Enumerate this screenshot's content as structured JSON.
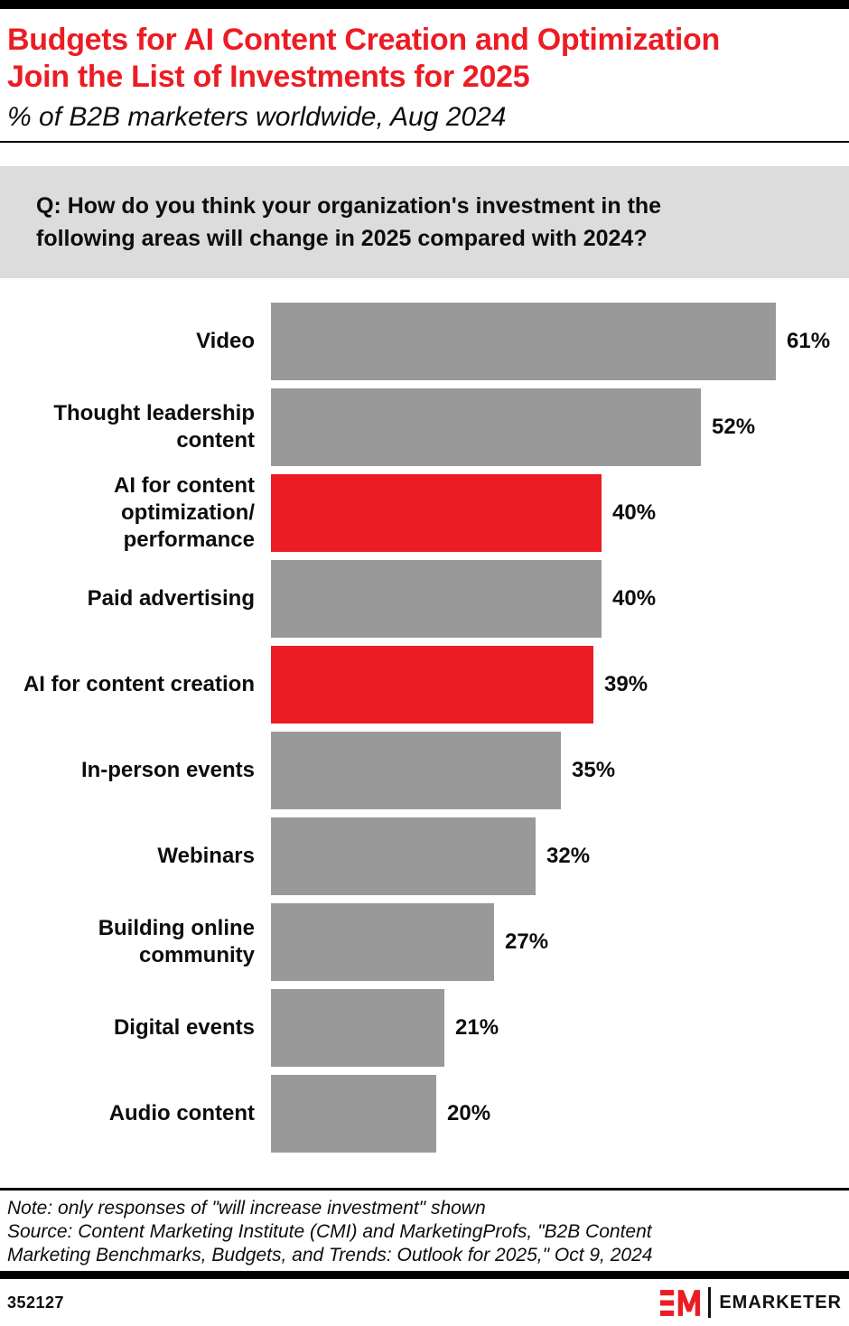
{
  "page": {
    "title": "Budgets for AI Content Creation and Optimization\nJoin the List of Investments for 2025",
    "subtitle": "% of B2B marketers worldwide, Aug 2024"
  },
  "question": {
    "text": "Q: How do you think your organization's investment in the\nfollowing areas will change in 2025 compared with 2024?"
  },
  "chart_data": {
    "type": "bar",
    "orientation": "horizontal",
    "unit": "%",
    "title": "Budgets for AI Content Creation and Optimization Join the List of Investments for 2025",
    "subtitle": "% of B2B marketers worldwide, Aug 2024",
    "xlim": [
      0,
      61
    ],
    "grid": false,
    "legend": "none",
    "categories": [
      "Video",
      "Thought leadership content",
      "AI for content optimization/performance",
      "Paid advertising",
      "AI for content creation",
      "In-person events",
      "Webinars",
      "Building online community",
      "Digital events",
      "Audio content"
    ],
    "values": [
      61,
      52,
      40,
      40,
      39,
      35,
      32,
      27,
      21,
      20
    ],
    "highlighted_categories": [
      "AI for content optimization/performance",
      "AI for content creation"
    ],
    "rows": [
      {
        "label": "Video",
        "value": 61,
        "value_label": "61%",
        "highlight": false
      },
      {
        "label": "Thought leadership\ncontent",
        "value": 52,
        "value_label": "52%",
        "highlight": false
      },
      {
        "label": "AI for content\noptimization/\nperformance",
        "value": 40,
        "value_label": "40%",
        "highlight": true
      },
      {
        "label": "Paid advertising",
        "value": 40,
        "value_label": "40%",
        "highlight": false
      },
      {
        "label": "AI for content creation",
        "value": 39,
        "value_label": "39%",
        "highlight": true
      },
      {
        "label": "In-person events",
        "value": 35,
        "value_label": "35%",
        "highlight": false
      },
      {
        "label": "Webinars",
        "value": 32,
        "value_label": "32%",
        "highlight": false
      },
      {
        "label": "Building online\ncommunity",
        "value": 27,
        "value_label": "27%",
        "highlight": false
      },
      {
        "label": "Digital events",
        "value": 21,
        "value_label": "21%",
        "highlight": false
      },
      {
        "label": "Audio content",
        "value": 20,
        "value_label": "20%",
        "highlight": false
      }
    ]
  },
  "notes": {
    "note": "Note: only responses of \"will increase investment\" shown",
    "source": "Source: Content Marketing Institute (CMI) and MarketingProfs, \"B2B Content\nMarketing Benchmarks, Budgets, and Trends: Outlook for 2025,\" Oct 9, 2024"
  },
  "footer": {
    "chart_id": "352127",
    "brand": "EMARKETER"
  },
  "colors": {
    "accent_red": "#EC1C24",
    "bar_gray": "#999999",
    "question_bg": "#DCDCDC",
    "strip_black": "#000000"
  }
}
